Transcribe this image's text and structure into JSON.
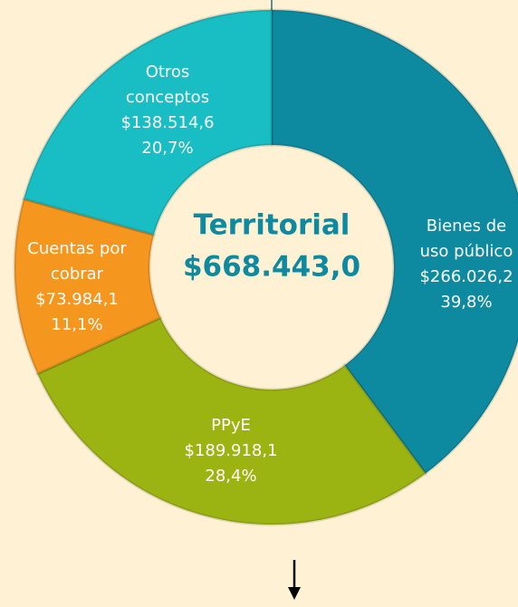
{
  "chart_data": {
    "type": "donut",
    "categories": [
      [
        "Bienes de",
        "uso público"
      ],
      [
        "PPyE"
      ],
      [
        "Cuentas por",
        "cobrar"
      ],
      [
        "Otros",
        "conceptos"
      ]
    ],
    "values": [
      266026.2,
      189918.1,
      73984.1,
      138514.6
    ],
    "value_labels": [
      "$266.026,2",
      "$189.918,1",
      "$73.984,1",
      "$138.514,6"
    ],
    "percents": [
      39.8,
      28.4,
      11.1,
      20.7
    ],
    "percent_labels": [
      "39,8%",
      "28,4%",
      "11,1%",
      "20,7%"
    ],
    "colors": [
      "#0e8aa0",
      "#9bb412",
      "#f5961e",
      "#18bec4"
    ],
    "center_title": "Territorial",
    "total": {
      "value": 668443.0,
      "label": "$668.443,0"
    }
  }
}
